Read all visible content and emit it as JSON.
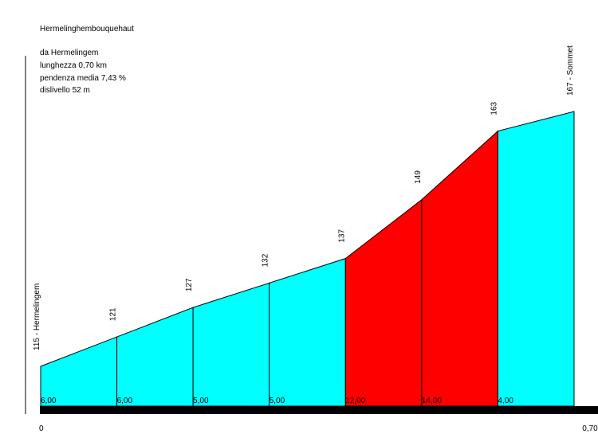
{
  "header": {
    "climb_name": "Hermelinghembouquehaut",
    "start_line": "da Hermelingem",
    "length_line": "lunghezza 0,70 km",
    "gradient_line": "pendenza media 7,43 %",
    "elevation_line": "dislivello 52 m"
  },
  "chart_data": {
    "type": "area",
    "title": "Hermelinghembouquehaut",
    "x": [
      0,
      0.1,
      0.2,
      0.3,
      0.4,
      0.5,
      0.6,
      0.7
    ],
    "altitudes": [
      115,
      121,
      127,
      132,
      137,
      149,
      163,
      167
    ],
    "point_labels": [
      "115 - Hermelingem",
      "121",
      "127",
      "132",
      "137",
      "149",
      "163",
      "167 - Sommet"
    ],
    "segment_gradients": [
      "6,00",
      "6,00",
      "5,00",
      "5,00",
      "12,00",
      "14,00",
      "4,00"
    ],
    "segment_colors": [
      "#00ffff",
      "#00ffff",
      "#00ffff",
      "#00ffff",
      "#ff0000",
      "#ff0000",
      "#00ffff"
    ],
    "x_tick_labels": [
      "0",
      "0,70"
    ],
    "xlim": [
      0,
      0.7
    ],
    "ylim": [
      105,
      172
    ],
    "grid": false,
    "legend": "none"
  }
}
